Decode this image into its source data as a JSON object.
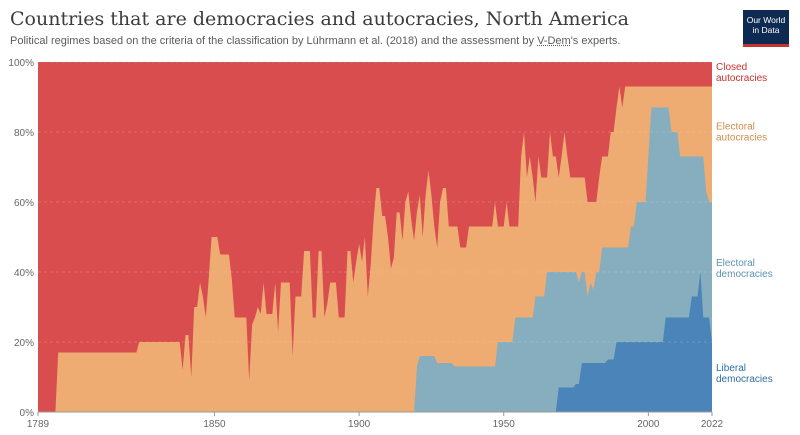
{
  "header": {
    "title": "Countries that are democracies and autocracies, North America",
    "subtitle_before": "Political regimes based on the criteria of the classification by Lührmann et al. (2018) and the assessment by ",
    "subtitle_link": "V-Dem",
    "subtitle_after": "'s experts.",
    "logo_line1": "Our World",
    "logo_line2": "in Data"
  },
  "chart_data": {
    "type": "area",
    "stacked": true,
    "normalized": true,
    "xlim": [
      1789,
      2022
    ],
    "ylim": [
      0,
      100
    ],
    "x_ticks": [
      1789,
      1850,
      1900,
      1950,
      2000,
      2022
    ],
    "y_ticks": [
      0,
      20,
      40,
      60,
      80,
      100
    ],
    "y_tick_labels": [
      "0%",
      "20%",
      "40%",
      "60%",
      "80%",
      "100%"
    ],
    "grid": "horizontal-dotted",
    "legend_placement": "right, inline labels",
    "colors": {
      "closed_autocracies": "#d94d4f",
      "electoral_autocracies": "#eeab72",
      "electoral_democracies": "#87aebe",
      "liberal_democracies": "#4a84b8"
    },
    "series": [
      {
        "name": "Liberal democracies",
        "label_lines": [
          "Liberal",
          "democracies"
        ],
        "color": "#4a84b8",
        "label_color": "#2e6ea6",
        "points": [
          [
            1789,
            0
          ],
          [
            1968,
            0
          ],
          [
            1969,
            7
          ],
          [
            1974,
            7
          ],
          [
            1975,
            8
          ],
          [
            1976,
            8
          ],
          [
            1977,
            14
          ],
          [
            1985,
            14
          ],
          [
            1986,
            15
          ],
          [
            1988,
            15
          ],
          [
            1989,
            20
          ],
          [
            2005,
            20
          ],
          [
            2006,
            27
          ],
          [
            2014,
            27
          ],
          [
            2015,
            33
          ],
          [
            2017,
            33
          ],
          [
            2018,
            40
          ],
          [
            2019,
            27
          ],
          [
            2021,
            27
          ],
          [
            2022,
            20
          ]
        ]
      },
      {
        "name": "Electoral democracies",
        "label_lines": [
          "Electoral",
          "democracies"
        ],
        "color": "#87aebe",
        "label_color": "#5b93b0",
        "points": [
          [
            1789,
            0
          ],
          [
            1919,
            0
          ],
          [
            1920,
            13
          ],
          [
            1921,
            16
          ],
          [
            1926,
            16
          ],
          [
            1927,
            14
          ],
          [
            1932,
            14
          ],
          [
            1933,
            13
          ],
          [
            1947,
            13
          ],
          [
            1948,
            20
          ],
          [
            1953,
            20
          ],
          [
            1954,
            27
          ],
          [
            1960,
            27
          ],
          [
            1961,
            33
          ],
          [
            1964,
            33
          ],
          [
            1965,
            40
          ],
          [
            1975,
            40
          ],
          [
            1976,
            37
          ],
          [
            1977,
            40
          ],
          [
            1978,
            40
          ],
          [
            1979,
            33
          ],
          [
            1980,
            37
          ],
          [
            1981,
            35
          ],
          [
            1982,
            40
          ],
          [
            1983,
            40
          ],
          [
            1984,
            47
          ],
          [
            1993,
            47
          ],
          [
            1994,
            53
          ],
          [
            1995,
            53
          ],
          [
            1996,
            60
          ],
          [
            1999,
            60
          ],
          [
            2000,
            73
          ],
          [
            2001,
            87
          ],
          [
            2007,
            87
          ],
          [
            2008,
            80
          ],
          [
            2010,
            80
          ],
          [
            2011,
            73
          ],
          [
            2019,
            73
          ],
          [
            2020,
            63
          ],
          [
            2021,
            60
          ],
          [
            2022,
            60
          ]
        ]
      },
      {
        "name": "Electoral autocracies",
        "label_lines": [
          "Electoral",
          "autocracies"
        ],
        "color": "#eeab72",
        "label_color": "#d58b4a",
        "points": [
          [
            1789,
            0
          ],
          [
            1795,
            0
          ],
          [
            1796,
            17
          ],
          [
            1823,
            17
          ],
          [
            1824,
            20
          ],
          [
            1838,
            20
          ],
          [
            1839,
            12
          ],
          [
            1840,
            22
          ],
          [
            1841,
            22
          ],
          [
            1842,
            10
          ],
          [
            1843,
            30
          ],
          [
            1844,
            30
          ],
          [
            1845,
            37
          ],
          [
            1846,
            33
          ],
          [
            1847,
            27
          ],
          [
            1848,
            38
          ],
          [
            1849,
            50
          ],
          [
            1851,
            50
          ],
          [
            1852,
            45
          ],
          [
            1855,
            45
          ],
          [
            1856,
            38
          ],
          [
            1857,
            27
          ],
          [
            1861,
            27
          ],
          [
            1862,
            9
          ],
          [
            1863,
            25
          ],
          [
            1864,
            27
          ],
          [
            1865,
            30
          ],
          [
            1866,
            28
          ],
          [
            1867,
            37
          ],
          [
            1868,
            28
          ],
          [
            1870,
            28
          ],
          [
            1871,
            37
          ],
          [
            1872,
            23
          ],
          [
            1873,
            37
          ],
          [
            1876,
            37
          ],
          [
            1877,
            16
          ],
          [
            1878,
            33
          ],
          [
            1880,
            33
          ],
          [
            1881,
            46
          ],
          [
            1883,
            46
          ],
          [
            1884,
            27
          ],
          [
            1885,
            27
          ],
          [
            1886,
            46
          ],
          [
            1887,
            46
          ],
          [
            1888,
            27
          ],
          [
            1889,
            31
          ],
          [
            1890,
            37
          ],
          [
            1892,
            37
          ],
          [
            1893,
            27
          ],
          [
            1895,
            27
          ],
          [
            1896,
            46
          ],
          [
            1897,
            46
          ],
          [
            1898,
            37
          ],
          [
            1899,
            43
          ],
          [
            1900,
            48
          ],
          [
            1901,
            43
          ],
          [
            1902,
            50
          ],
          [
            1903,
            33
          ],
          [
            1904,
            42
          ],
          [
            1905,
            55
          ],
          [
            1906,
            64
          ],
          [
            1907,
            64
          ],
          [
            1908,
            56
          ],
          [
            1909,
            56
          ],
          [
            1910,
            50
          ],
          [
            1911,
            41
          ],
          [
            1912,
            44
          ],
          [
            1913,
            57
          ],
          [
            1914,
            57
          ],
          [
            1915,
            49
          ],
          [
            1916,
            60
          ],
          [
            1917,
            63
          ],
          [
            1918,
            55
          ],
          [
            1919,
            49
          ],
          [
            1920,
            57
          ],
          [
            1921,
            62
          ],
          [
            1922,
            50
          ],
          [
            1923,
            62
          ],
          [
            1924,
            69
          ],
          [
            1925,
            62
          ],
          [
            1926,
            53
          ],
          [
            1927,
            47
          ],
          [
            1928,
            60
          ],
          [
            1929,
            64
          ],
          [
            1930,
            64
          ],
          [
            1931,
            53
          ],
          [
            1934,
            53
          ],
          [
            1935,
            47
          ],
          [
            1937,
            47
          ],
          [
            1938,
            53
          ],
          [
            1946,
            53
          ],
          [
            1947,
            60
          ],
          [
            1948,
            53
          ],
          [
            1950,
            53
          ],
          [
            1951,
            60
          ],
          [
            1952,
            53
          ],
          [
            1955,
            53
          ],
          [
            1956,
            73
          ],
          [
            1957,
            80
          ],
          [
            1958,
            67
          ],
          [
            1959,
            73
          ],
          [
            1960,
            67
          ],
          [
            1961,
            60
          ],
          [
            1962,
            73
          ],
          [
            1963,
            67
          ],
          [
            1965,
            67
          ],
          [
            1966,
            80
          ],
          [
            1967,
            73
          ],
          [
            1968,
            73
          ],
          [
            1969,
            67
          ],
          [
            1970,
            73
          ],
          [
            1971,
            80
          ],
          [
            1972,
            73
          ],
          [
            1973,
            67
          ],
          [
            1978,
            67
          ],
          [
            1979,
            60
          ],
          [
            1982,
            60
          ],
          [
            1983,
            67
          ],
          [
            1984,
            73
          ],
          [
            1986,
            73
          ],
          [
            1987,
            80
          ],
          [
            1988,
            80
          ],
          [
            1989,
            87
          ],
          [
            1990,
            93
          ],
          [
            1991,
            87
          ],
          [
            1992,
            93
          ],
          [
            2022,
            93
          ]
        ]
      },
      {
        "name": "Closed autocracies",
        "label_lines": [
          "Closed",
          "autocracies"
        ],
        "color": "#d94d4f",
        "label_color": "#c9302c",
        "points": [
          [
            1789,
            100
          ],
          [
            2022,
            100
          ]
        ]
      }
    ]
  }
}
